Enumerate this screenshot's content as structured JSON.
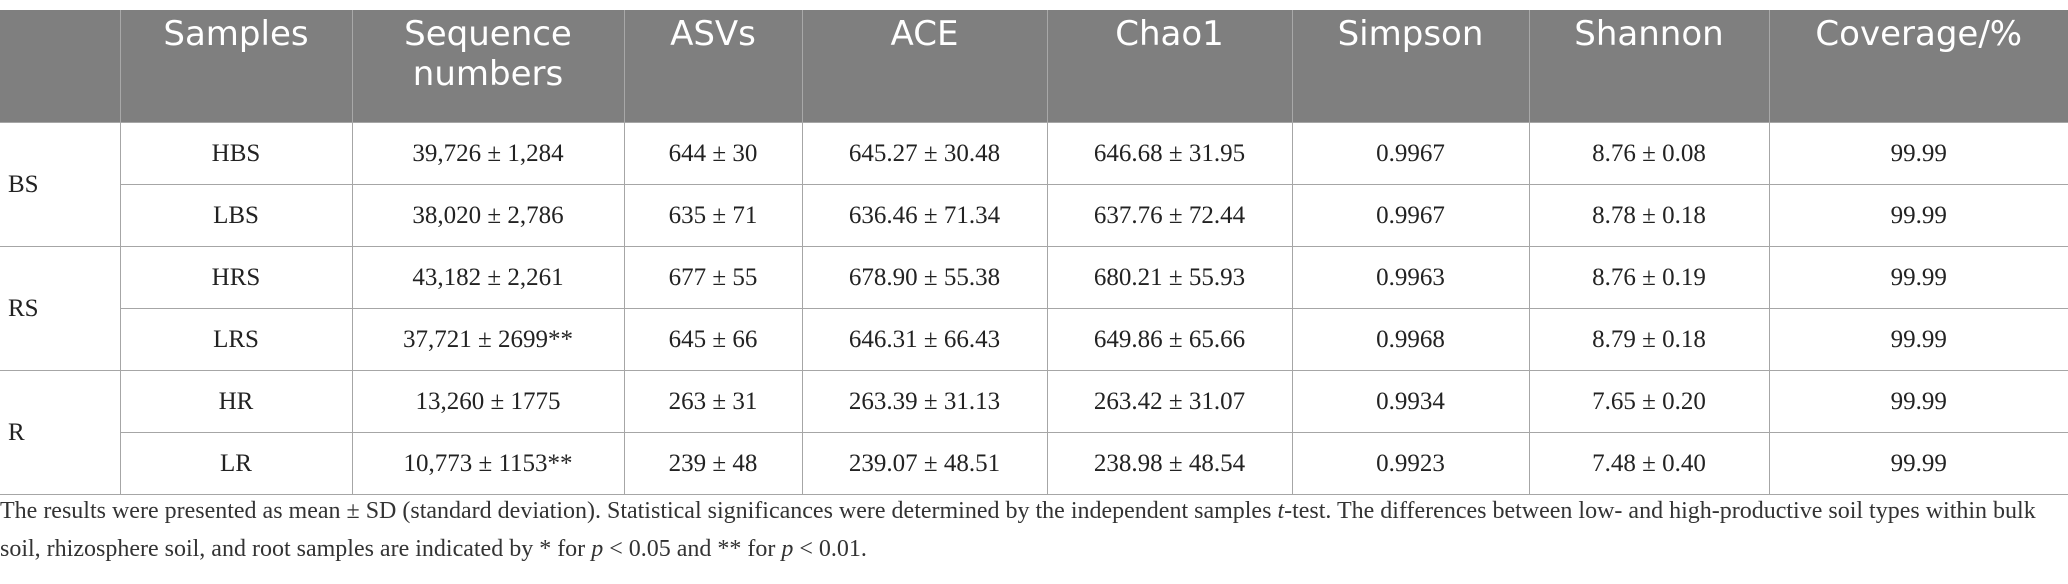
{
  "table": {
    "headers": [
      "",
      "Samples",
      "Sequence numbers",
      "ASVs",
      "ACE",
      "Chao1",
      "Simpson",
      "Shannon",
      "Coverage/%"
    ],
    "groups": [
      {
        "label": "BS",
        "rows": [
          [
            "HBS",
            "39,726 ± 1,284",
            "644 ± 30",
            "645.27 ± 30.48",
            "646.68 ± 31.95",
            "0.9967",
            "8.76 ± 0.08",
            "99.99"
          ],
          [
            "LBS",
            "38,020 ± 2,786",
            "635 ± 71",
            "636.46 ± 71.34",
            "637.76 ± 72.44",
            "0.9967",
            "8.78 ± 0.18",
            "99.99"
          ]
        ]
      },
      {
        "label": "RS",
        "rows": [
          [
            "HRS",
            "43,182 ± 2,261",
            "677 ± 55",
            "678.90 ± 55.38",
            "680.21 ± 55.93",
            "0.9963",
            "8.76 ± 0.19",
            "99.99"
          ],
          [
            "LRS",
            "37,721 ± 2699**",
            "645 ± 66",
            "646.31 ± 66.43",
            "649.86 ± 65.66",
            "0.9968",
            "8.79 ± 0.18",
            "99.99"
          ]
        ]
      },
      {
        "label": "R",
        "rows": [
          [
            "HR",
            "13,260 ± 1775",
            "263 ± 31",
            "263.39 ± 31.13",
            "263.42 ± 31.07",
            "0.9934",
            "7.65 ± 0.20",
            "99.99"
          ],
          [
            "LR",
            "10,773 ± 1153**",
            "239 ± 48",
            "239.07 ± 48.51",
            "238.98 ± 48.54",
            "0.9923",
            "7.48 ± 0.40",
            "99.99"
          ]
        ]
      }
    ]
  },
  "footnote": {
    "part1": "The results were presented as mean ± SD (standard deviation). Statistical significances were determined by the independent samples ",
    "t_italic": "t",
    "part2": "-test. The differences between low- and high-productive soil types within bulk soil, rhizosphere soil, and root samples are indicated by * for ",
    "p1": "p",
    "part3": " < 0.05 and ** for ",
    "p2": "p",
    "part4": " < 0.01."
  }
}
